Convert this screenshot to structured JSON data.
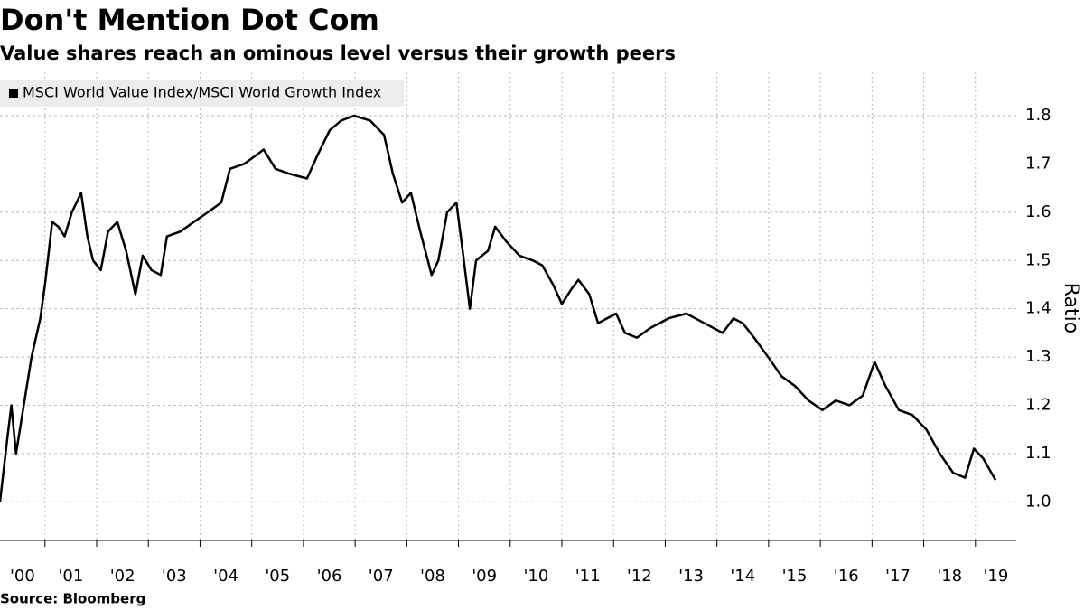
{
  "chart_data": {
    "type": "line",
    "title": "Don't Mention Dot Com",
    "subtitle": "Value shares reach an ominous level versus their growth peers",
    "source": "Source: Bloomberg",
    "y_label": "Ratio",
    "x": [
      2000.13,
      2000.27,
      2000.35,
      2000.44,
      2000.56,
      2000.74,
      2000.91,
      2001.0,
      2001.14,
      2001.26,
      2001.38,
      2001.52,
      2001.7,
      2001.82,
      2001.93,
      2002.08,
      2002.22,
      2002.4,
      2002.57,
      2002.75,
      2002.89,
      2003.06,
      2003.24,
      2003.36,
      2003.62,
      2003.88,
      2004.15,
      2004.41,
      2004.58,
      2004.85,
      2005.11,
      2005.23,
      2005.46,
      2005.72,
      2006.07,
      2006.28,
      2006.51,
      2006.73,
      2006.98,
      2007.29,
      2007.56,
      2007.73,
      2007.91,
      2008.08,
      2008.26,
      2008.48,
      2008.61,
      2008.78,
      2008.96,
      2009.08,
      2009.22,
      2009.34,
      2009.57,
      2009.71,
      2009.92,
      2010.18,
      2010.44,
      2010.62,
      2010.83,
      2011.0,
      2011.18,
      2011.32,
      2011.53,
      2011.7,
      2011.87,
      2012.05,
      2012.22,
      2012.45,
      2012.71,
      2013.06,
      2013.41,
      2013.76,
      2014.11,
      2014.32,
      2014.5,
      2014.72,
      2014.99,
      2015.25,
      2015.51,
      2015.77,
      2016.04,
      2016.3,
      2016.56,
      2016.82,
      2017.05,
      2017.26,
      2017.52,
      2017.78,
      2018.05,
      2018.31,
      2018.57,
      2018.8,
      2018.97,
      2019.15,
      2019.39
    ],
    "series": [
      {
        "name": "MSCI World Value Index/MSCI World Growth Index",
        "color": "#000000",
        "values": [
          1.0,
          1.13,
          1.2,
          1.1,
          1.18,
          1.3,
          1.38,
          1.45,
          1.58,
          1.57,
          1.55,
          1.6,
          1.64,
          1.55,
          1.5,
          1.48,
          1.56,
          1.58,
          1.52,
          1.43,
          1.51,
          1.48,
          1.47,
          1.55,
          1.56,
          1.58,
          1.6,
          1.62,
          1.69,
          1.7,
          1.72,
          1.73,
          1.69,
          1.68,
          1.67,
          1.72,
          1.77,
          1.79,
          1.8,
          1.79,
          1.76,
          1.68,
          1.62,
          1.64,
          1.56,
          1.47,
          1.5,
          1.6,
          1.62,
          1.52,
          1.4,
          1.5,
          1.52,
          1.57,
          1.54,
          1.51,
          1.5,
          1.49,
          1.45,
          1.41,
          1.44,
          1.46,
          1.43,
          1.37,
          1.38,
          1.39,
          1.35,
          1.34,
          1.36,
          1.38,
          1.39,
          1.37,
          1.35,
          1.38,
          1.37,
          1.34,
          1.3,
          1.26,
          1.24,
          1.21,
          1.19,
          1.21,
          1.2,
          1.22,
          1.29,
          1.24,
          1.19,
          1.18,
          1.15,
          1.1,
          1.06,
          1.05,
          1.11,
          1.09,
          1.045
        ]
      }
    ],
    "xlim": [
      2000.13,
      2019.79
    ],
    "xticks": [
      {
        "value": 2000,
        "label": "'00"
      },
      {
        "value": 2001,
        "label": "'01"
      },
      {
        "value": 2002,
        "label": "'02"
      },
      {
        "value": 2003,
        "label": "'03"
      },
      {
        "value": 2004,
        "label": "'04"
      },
      {
        "value": 2005,
        "label": "'05"
      },
      {
        "value": 2006,
        "label": "'06"
      },
      {
        "value": 2007,
        "label": "'07"
      },
      {
        "value": 2008,
        "label": "'08"
      },
      {
        "value": 2009,
        "label": "'09"
      },
      {
        "value": 2010,
        "label": "'10"
      },
      {
        "value": 2011,
        "label": "'11"
      },
      {
        "value": 2012,
        "label": "'12"
      },
      {
        "value": 2013,
        "label": "'13"
      },
      {
        "value": 2014,
        "label": "'14"
      },
      {
        "value": 2015,
        "label": "'15"
      },
      {
        "value": 2016,
        "label": "'16"
      },
      {
        "value": 2017,
        "label": "'17"
      },
      {
        "value": 2018,
        "label": "'18"
      },
      {
        "value": 2019,
        "label": "'19"
      }
    ],
    "ylim": [
      0.92,
      1.89
    ],
    "yticks": [
      {
        "value": 1,
        "label": "1.0"
      },
      1.1,
      1.2,
      1.3,
      1.4,
      1.5,
      1.6,
      1.7,
      1.8
    ],
    "grid": true,
    "legend": "top-left"
  }
}
